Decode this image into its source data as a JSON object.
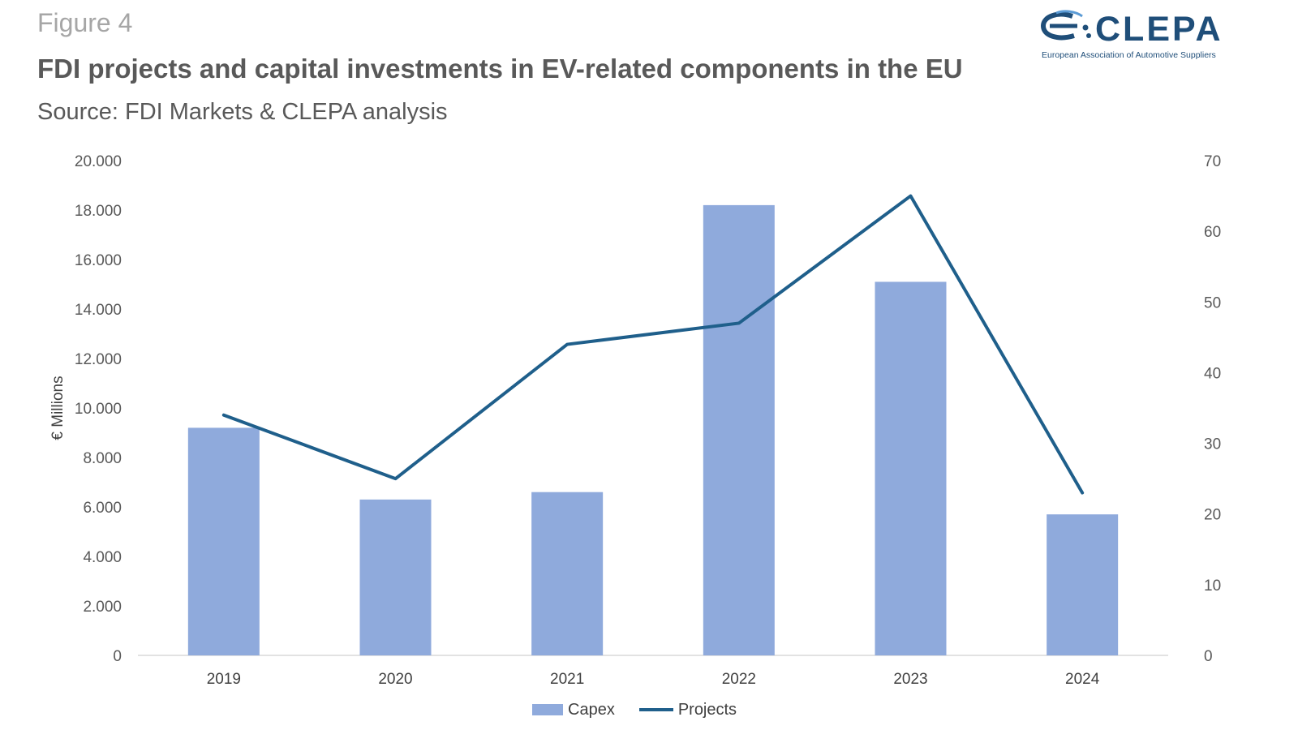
{
  "figure_label": "Figure 4",
  "title": "FDI projects and capital investments in EV-related components in the EU",
  "subtitle": "Source: FDI Markets & CLEPA analysis",
  "logo": {
    "name": "CLEPA",
    "tagline": "European Association of Automotive Suppliers",
    "color": "#1f4e79"
  },
  "chart_data": {
    "type": "bar",
    "categories": [
      "2019",
      "2020",
      "2021",
      "2022",
      "2023",
      "2024"
    ],
    "series": [
      {
        "name": "Capex",
        "type": "bar",
        "axis": "left",
        "color": "#8faadc",
        "values": [
          9200,
          6300,
          6600,
          18200,
          15100,
          5700
        ]
      },
      {
        "name": "Projects",
        "type": "line",
        "axis": "right",
        "color": "#1f5f8b",
        "values": [
          34,
          25,
          44,
          47,
          65,
          23
        ]
      }
    ],
    "ylabel": "€ Millions",
    "ylim": [
      0,
      20000
    ],
    "yticks": [
      "0",
      "2.000",
      "4.000",
      "6.000",
      "8.000",
      "10.000",
      "12.000",
      "14.000",
      "16.000",
      "18.000",
      "20.000"
    ],
    "y2lim": [
      0,
      70
    ],
    "y2ticks": [
      "0",
      "10",
      "20",
      "30",
      "40",
      "50",
      "60",
      "70"
    ],
    "grid": false,
    "legend_position": "bottom"
  }
}
